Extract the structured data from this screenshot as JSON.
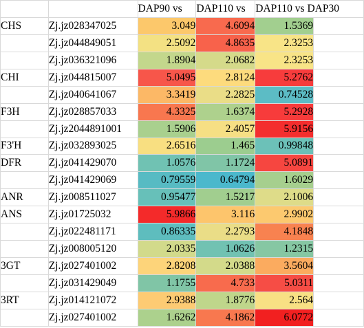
{
  "header": {
    "col1": "DAP90 vs",
    "col2": "DAP110 vs",
    "col3": "DAP110 vs DAP30"
  },
  "rows": [
    {
      "gene": "CHS",
      "name": "Zj.jz028347025",
      "v": [
        "3.049",
        "4.6094",
        "1.5369"
      ],
      "c": [
        "#fcc86b",
        "#f86a4e",
        "#a2cf8f"
      ]
    },
    {
      "gene": "",
      "name": "Zj.jz044849051",
      "v": [
        "2.5092",
        "4.8635",
        "2.3253"
      ],
      "c": [
        "#f3e183",
        "#f8624b",
        "#f8e487"
      ]
    },
    {
      "gene": "",
      "name": "Zj.jz036321096",
      "v": [
        "1.8904",
        "2.0682",
        "2.3253"
      ],
      "c": [
        "#c3d78c",
        "#d5da8a",
        "#f8e487"
      ]
    },
    {
      "gene": "CHI",
      "name": "Zj.jz044815007",
      "v": [
        "5.0495",
        "2.8124",
        "5.2762"
      ],
      "c": [
        "#f7564a",
        "#fddb7d",
        "#f73c3c"
      ]
    },
    {
      "gene": "",
      "name": "Zj.jz040641067",
      "v": [
        "3.3419",
        "2.2825",
        "0.74528"
      ],
      "c": [
        "#fcb866",
        "#eadd87",
        "#5cbcc5"
      ]
    },
    {
      "gene": "F3H",
      "name": "Zj.jz028857033",
      "v": [
        "4.3325",
        "1.6374",
        "5.2928"
      ],
      "c": [
        "#f8774f",
        "#aed18d",
        "#f73b3b"
      ]
    },
    {
      "gene": "",
      "name": "Zj.jz2044891001",
      "v": [
        "1.5906",
        "2.4057",
        "5.9156"
      ],
      "c": [
        "#a9d08e",
        "#f6df84",
        "#f42e2e"
      ]
    },
    {
      "gene": "F3'H",
      "name": "Zj.jz032893025",
      "v": [
        "2.6516",
        "1.465",
        "0.99848"
      ],
      "c": [
        "#f8df81",
        "#9ccd8f",
        "#6cc1b8"
      ]
    },
    {
      "gene": "DFR",
      "name": "Zj.jz041429070",
      "v": [
        "1.0576",
        "1.1724",
        "5.0891"
      ],
      "c": [
        "#70c2b3",
        "#80c5a7",
        "#f64640"
      ]
    },
    {
      "gene": "",
      "name": "Zj.jz041429069",
      "v": [
        "0.79559",
        "0.64794",
        "1.6029"
      ],
      "c": [
        "#57bbc3",
        "#4bb8cc",
        "#a6cf8e"
      ]
    },
    {
      "gene": "ANR",
      "name": "Zj.jz008511027",
      "v": [
        "0.95477",
        "1.5217",
        "2.1006"
      ],
      "c": [
        "#67c0b9",
        "#a1ce8f",
        "#dedc89"
      ]
    },
    {
      "gene": "ANS",
      "name": "Zj.jz01725032",
      "v": [
        "5.9866",
        "3.116",
        "2.9902"
      ],
      "c": [
        "#f42a2a",
        "#fdc56c",
        "#fcc96f"
      ]
    },
    {
      "gene": "",
      "name": "Zj.jz022481171",
      "v": [
        "0.86335",
        "2.2793",
        "4.1848"
      ],
      "c": [
        "#5ebdbe",
        "#eadd87",
        "#f88250"
      ]
    },
    {
      "gene": "",
      "name": "Zj.jz008005120",
      "v": [
        "2.0335",
        "1.0626",
        "1.2315"
      ],
      "c": [
        "#d2da8b",
        "#71c2b2",
        "#86c7a3"
      ]
    },
    {
      "gene": "3GT",
      "name": "Zj.jz027401002",
      "v": [
        "2.8208",
        "2.0388",
        "3.5604"
      ],
      "c": [
        "#fdd47a",
        "#d3da8a",
        "#fbab5f"
      ]
    },
    {
      "gene": "",
      "name": "Zj.jz031429049",
      "v": [
        "1.1755",
        "4.733",
        "5.0311"
      ],
      "c": [
        "#80c5a6",
        "#f86b4d",
        "#f64d45"
      ]
    },
    {
      "gene": "3RT",
      "name": "Zj.jz014121072",
      "v": [
        "2.9388",
        "1.8776",
        "2.564"
      ],
      "c": [
        "#fdcb73",
        "#bfd68b",
        "#f8e084"
      ]
    },
    {
      "gene": "",
      "name": "Zj.jz027401002",
      "v": [
        "1.6262",
        "4.1862",
        "6.0772"
      ],
      "c": [
        "#acd18d",
        "#f8784f",
        "#f22020"
      ]
    }
  ]
}
